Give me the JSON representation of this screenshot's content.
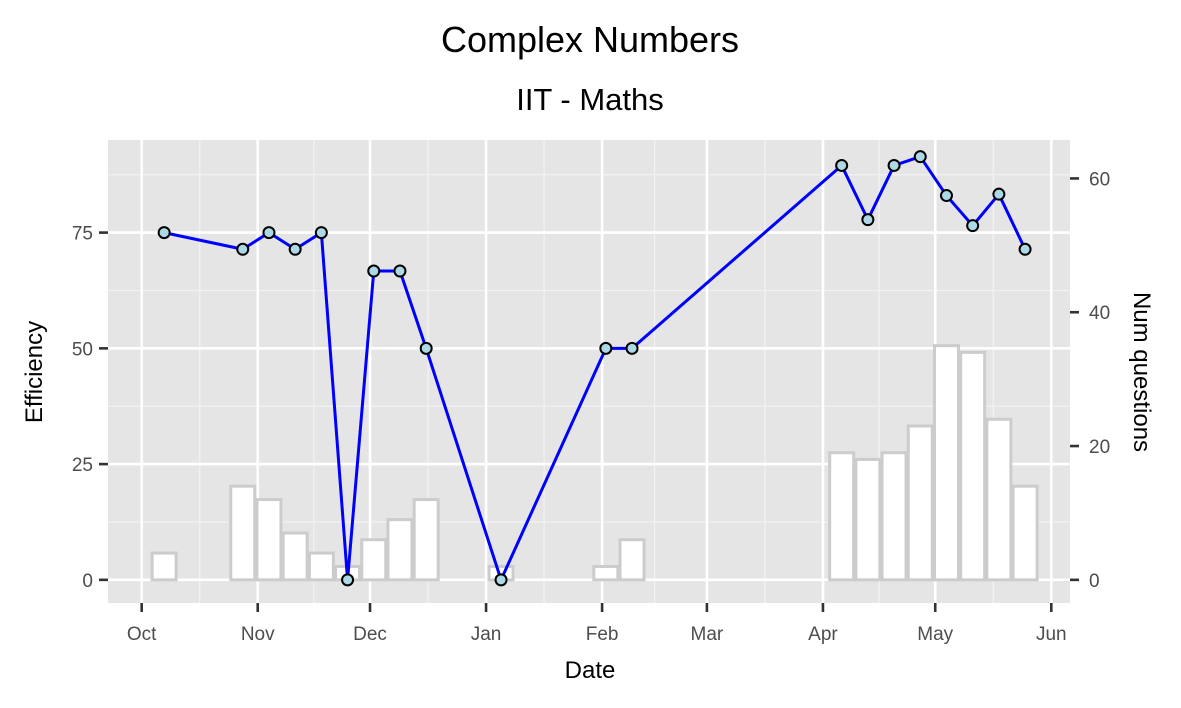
{
  "chart_data": {
    "type": "line",
    "title": "Complex Numbers",
    "subtitle": "IIT - Maths",
    "xlabel": "Date",
    "ylabel": "Efficiency",
    "y2label": "Num questions",
    "x_ticks": [
      "Oct",
      "Nov",
      "Dec",
      "Jan",
      "Feb",
      "Mar",
      "Apr",
      "May",
      "Jun"
    ],
    "x_tick_dates": [
      "2018-10-01",
      "2018-11-01",
      "2018-12-01",
      "2019-01-01",
      "2019-02-01",
      "2019-03-01",
      "2019-04-01",
      "2019-05-01",
      "2019-06-01"
    ],
    "xlim": [
      "2018-09-22",
      "2019-06-06"
    ],
    "y_ticks": [
      0,
      25,
      50,
      75
    ],
    "ylim": [
      -5,
      95
    ],
    "y2_ticks": [
      0,
      20,
      40,
      60
    ],
    "grid": true,
    "line_color": "#0000ff",
    "point_fill": "#add8e6",
    "bar_fill": "#ffffff",
    "bar_stroke": "#cccccc",
    "panel_background": "#e5e5e5",
    "series": [
      {
        "type": "line",
        "axis": "left",
        "points": [
          {
            "x": "2018-10-07",
            "y": 75
          },
          {
            "x": "2018-10-28",
            "y": 71.4
          },
          {
            "x": "2018-11-04",
            "y": 75
          },
          {
            "x": "2018-11-11",
            "y": 71.4
          },
          {
            "x": "2018-11-18",
            "y": 75
          },
          {
            "x": "2018-11-25",
            "y": 0
          },
          {
            "x": "2018-12-02",
            "y": 66.7
          },
          {
            "x": "2018-12-09",
            "y": 66.7
          },
          {
            "x": "2018-12-16",
            "y": 50
          },
          {
            "x": "2019-01-05",
            "y": 0
          },
          {
            "x": "2019-02-02",
            "y": 50
          },
          {
            "x": "2019-02-09",
            "y": 50
          },
          {
            "x": "2019-04-06",
            "y": 89.5
          },
          {
            "x": "2019-04-13",
            "y": 77.8
          },
          {
            "x": "2019-04-20",
            "y": 89.5
          },
          {
            "x": "2019-04-27",
            "y": 91.4
          },
          {
            "x": "2019-05-04",
            "y": 83
          },
          {
            "x": "2019-05-11",
            "y": 76.5
          },
          {
            "x": "2019-05-18",
            "y": 83.3
          },
          {
            "x": "2019-05-25",
            "y": 71.4
          }
        ]
      },
      {
        "type": "bar",
        "axis": "right",
        "points": [
          {
            "x": "2018-10-07",
            "y": 4
          },
          {
            "x": "2018-10-28",
            "y": 14
          },
          {
            "x": "2018-11-04",
            "y": 12
          },
          {
            "x": "2018-11-11",
            "y": 7
          },
          {
            "x": "2018-11-18",
            "y": 4
          },
          {
            "x": "2018-11-25",
            "y": 2
          },
          {
            "x": "2018-12-02",
            "y": 6
          },
          {
            "x": "2018-12-09",
            "y": 9
          },
          {
            "x": "2018-12-16",
            "y": 12
          },
          {
            "x": "2019-01-05",
            "y": 2
          },
          {
            "x": "2019-02-02",
            "y": 2
          },
          {
            "x": "2019-02-09",
            "y": 6
          },
          {
            "x": "2019-04-06",
            "y": 19
          },
          {
            "x": "2019-04-13",
            "y": 18
          },
          {
            "x": "2019-04-20",
            "y": 19
          },
          {
            "x": "2019-04-27",
            "y": 23
          },
          {
            "x": "2019-05-04",
            "y": 35
          },
          {
            "x": "2019-05-11",
            "y": 34
          },
          {
            "x": "2019-05-18",
            "y": 24
          },
          {
            "x": "2019-05-25",
            "y": 14
          }
        ]
      }
    ]
  }
}
